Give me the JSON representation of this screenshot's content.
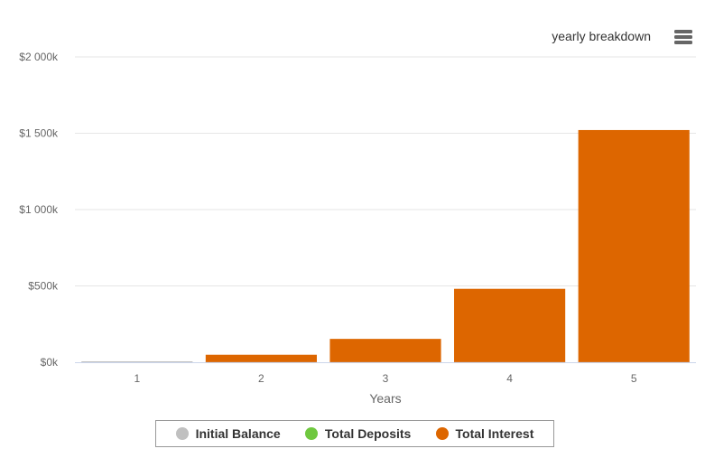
{
  "header": {
    "title": "yearly breakdown",
    "menu_icon": "hamburger-menu-icon"
  },
  "chart_data": {
    "type": "bar",
    "stacked": true,
    "categories": [
      "1",
      "2",
      "3",
      "4",
      "5"
    ],
    "xlabel": "Years",
    "ylabel": "",
    "ylim": [
      0,
      2000000
    ],
    "yticks": [
      {
        "value": 0,
        "label": "$0k"
      },
      {
        "value": 500000,
        "label": "$500k"
      },
      {
        "value": 1000000,
        "label": "$1 000k"
      },
      {
        "value": 1500000,
        "label": "$1 500k"
      },
      {
        "value": 2000000,
        "label": "$2 000k"
      }
    ],
    "grid": true,
    "legend_position": "bottom-center",
    "series": [
      {
        "name": "Initial Balance",
        "color": "#c0c0c0",
        "values": [
          1000,
          1000,
          1000,
          1000,
          1000
        ]
      },
      {
        "name": "Total Deposits",
        "color": "#6fc83f",
        "values": [
          0,
          0,
          0,
          0,
          0
        ]
      },
      {
        "name": "Total Interest",
        "color": "#dd6600",
        "values": [
          0,
          48000,
          152000,
          480000,
          1520000
        ]
      }
    ]
  }
}
